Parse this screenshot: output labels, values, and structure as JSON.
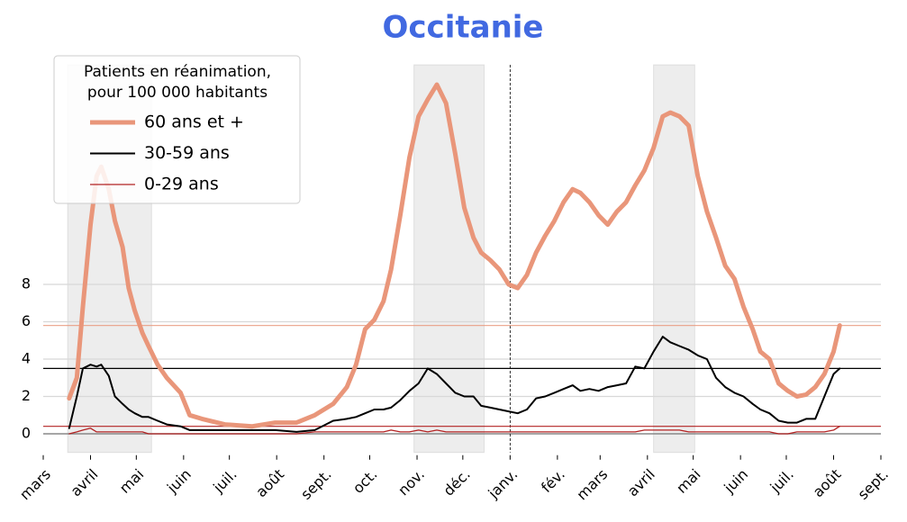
{
  "chart_data": {
    "type": "line",
    "title": "Occitanie",
    "title_color": "#4169e1",
    "legend_title": [
      "Patients en réanimation,",
      "pour 100 000 habitants"
    ],
    "legend_position": "upper left",
    "x": [
      17,
      22,
      26,
      31,
      35,
      38,
      43,
      47,
      52,
      56,
      60,
      65,
      69,
      75,
      81,
      90,
      96,
      104,
      119,
      137,
      152,
      166,
      178,
      190,
      199,
      205,
      211,
      217,
      223,
      228,
      234,
      240,
      246,
      252,
      258,
      264,
      270,
      276,
      282,
      287,
      293,
      299,
      305,
      311,
      317,
      323,
      329,
      335,
      341,
      347,
      352,
      358,
      364,
      370,
      376,
      382,
      388,
      394,
      400,
      406,
      411,
      417,
      423,
      429,
      435,
      441,
      447,
      453,
      459,
      465,
      470,
      476,
      482,
      488,
      494,
      500,
      506,
      512,
      518,
      522
    ],
    "series": [
      {
        "name": "60 ans et +",
        "color": "#e9967a",
        "width": 5,
        "values": [
          1.9,
          3.0,
          6.8,
          11.2,
          13.8,
          14.3,
          13.1,
          11.4,
          10.0,
          7.8,
          6.6,
          5.4,
          4.7,
          3.7,
          3.0,
          2.2,
          1.0,
          0.8,
          0.5,
          0.4,
          0.6,
          0.6,
          1.0,
          1.6,
          2.5,
          3.7,
          5.6,
          6.1,
          7.1,
          8.8,
          11.7,
          14.8,
          17.0,
          17.9,
          18.7,
          17.7,
          15.0,
          12.1,
          10.5,
          9.7,
          9.3,
          8.8,
          8.0,
          7.8,
          8.5,
          9.7,
          10.6,
          11.4,
          12.4,
          13.1,
          12.9,
          12.4,
          11.7,
          11.2,
          11.9,
          12.4,
          13.3,
          14.1,
          15.3,
          17.0,
          17.2,
          17.0,
          16.5,
          13.8,
          11.9,
          10.5,
          9.0,
          8.3,
          6.8,
          5.6,
          4.4,
          4.0,
          2.7,
          2.3,
          2.0,
          2.1,
          2.5,
          3.2,
          4.4,
          5.8
        ]
      },
      {
        "name": "30-59 ans",
        "color": "#000000",
        "width": 2,
        "values": [
          0.3,
          2.0,
          3.5,
          3.7,
          3.6,
          3.7,
          3.1,
          2.0,
          1.6,
          1.3,
          1.1,
          0.9,
          0.9,
          0.7,
          0.5,
          0.4,
          0.2,
          0.2,
          0.2,
          0.2,
          0.2,
          0.1,
          0.2,
          0.7,
          0.8,
          0.9,
          1.1,
          1.3,
          1.3,
          1.4,
          1.8,
          2.3,
          2.7,
          3.5,
          3.2,
          2.7,
          2.2,
          2.0,
          2.0,
          1.5,
          1.4,
          1.3,
          1.2,
          1.1,
          1.3,
          1.9,
          2.0,
          2.2,
          2.4,
          2.6,
          2.3,
          2.4,
          2.3,
          2.5,
          2.6,
          2.7,
          3.6,
          3.5,
          4.4,
          5.2,
          4.9,
          4.7,
          4.5,
          4.2,
          4.0,
          3.0,
          2.5,
          2.2,
          2.0,
          1.6,
          1.3,
          1.1,
          0.7,
          0.6,
          0.6,
          0.8,
          0.8,
          2.0,
          3.2,
          3.5
        ]
      },
      {
        "name": "0-29 ans",
        "color": "#b22222",
        "width": 1.3,
        "values": [
          0.0,
          0.1,
          0.2,
          0.3,
          0.1,
          0.1,
          0.1,
          0.1,
          0.1,
          0.1,
          0.1,
          0.1,
          0.0,
          0.0,
          0.0,
          0.0,
          0.0,
          0.0,
          0.0,
          0.0,
          0.0,
          0.0,
          0.1,
          0.1,
          0.1,
          0.1,
          0.1,
          0.1,
          0.1,
          0.2,
          0.1,
          0.1,
          0.2,
          0.1,
          0.2,
          0.1,
          0.1,
          0.1,
          0.1,
          0.1,
          0.1,
          0.1,
          0.1,
          0.1,
          0.1,
          0.1,
          0.1,
          0.1,
          0.1,
          0.1,
          0.1,
          0.1,
          0.1,
          0.1,
          0.1,
          0.1,
          0.1,
          0.2,
          0.2,
          0.2,
          0.2,
          0.2,
          0.1,
          0.1,
          0.1,
          0.1,
          0.1,
          0.1,
          0.1,
          0.1,
          0.1,
          0.1,
          0.0,
          0.0,
          0.1,
          0.1,
          0.1,
          0.1,
          0.2,
          0.4
        ]
      }
    ],
    "xlim": [
      0,
      549
    ],
    "xticks": [
      {
        "value": 0,
        "label": "mars"
      },
      {
        "value": 31,
        "label": "avril"
      },
      {
        "value": 61,
        "label": "mai"
      },
      {
        "value": 92,
        "label": "juin"
      },
      {
        "value": 122,
        "label": "juil."
      },
      {
        "value": 153,
        "label": "août"
      },
      {
        "value": 184,
        "label": "sept."
      },
      {
        "value": 214,
        "label": "oct."
      },
      {
        "value": 245,
        "label": "nov."
      },
      {
        "value": 275,
        "label": "déc."
      },
      {
        "value": 306,
        "label": "janv."
      },
      {
        "value": 337,
        "label": "fév."
      },
      {
        "value": 365,
        "label": "mars"
      },
      {
        "value": 396,
        "label": "avril"
      },
      {
        "value": 426,
        "label": "mai"
      },
      {
        "value": 457,
        "label": "juin"
      },
      {
        "value": 487,
        "label": "juil."
      },
      {
        "value": 518,
        "label": "août"
      },
      {
        "value": 549,
        "label": "sept."
      }
    ],
    "ylim": [
      -1,
      20
    ],
    "yticks": [
      0,
      2,
      4,
      6,
      8
    ],
    "grid": true,
    "shaded_periods": [
      [
        16,
        71
      ],
      [
        243,
        289
      ],
      [
        400,
        427
      ]
    ],
    "vline": 306
  }
}
